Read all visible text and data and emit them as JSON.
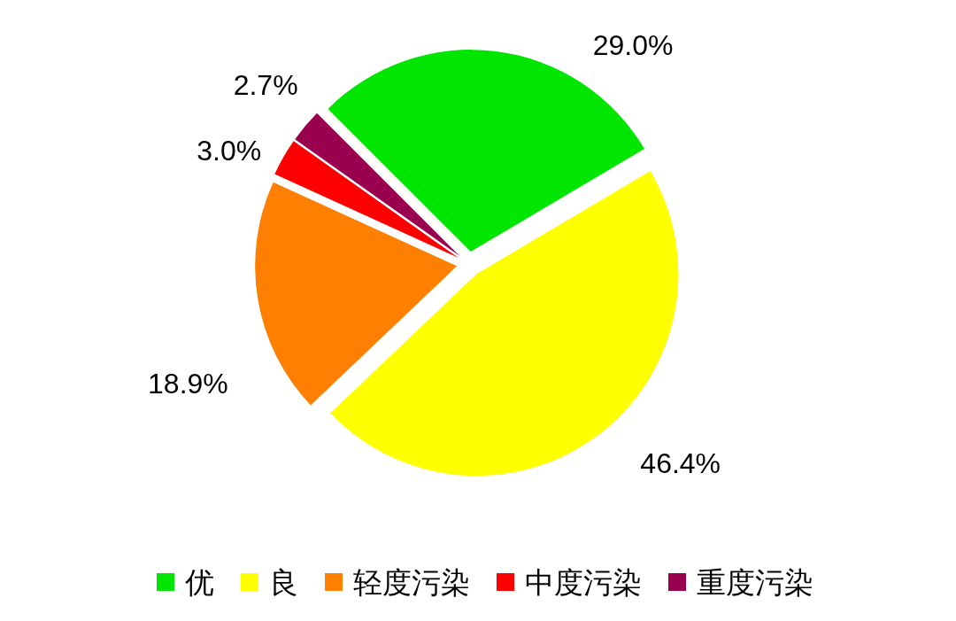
{
  "chart_data": {
    "type": "pie",
    "categories": [
      "优",
      "良",
      "轻度污染",
      "中度污染",
      "重度污染"
    ],
    "values": [
      29.0,
      46.4,
      18.9,
      3.0,
      2.7
    ],
    "colors": [
      "#00e600",
      "#ffff00",
      "#ff8000",
      "#ff0000",
      "#99004d"
    ],
    "value_labels": [
      "29.0%",
      "46.4%",
      "18.9%",
      "3.0%",
      "2.7%"
    ],
    "legend": "bottom"
  }
}
